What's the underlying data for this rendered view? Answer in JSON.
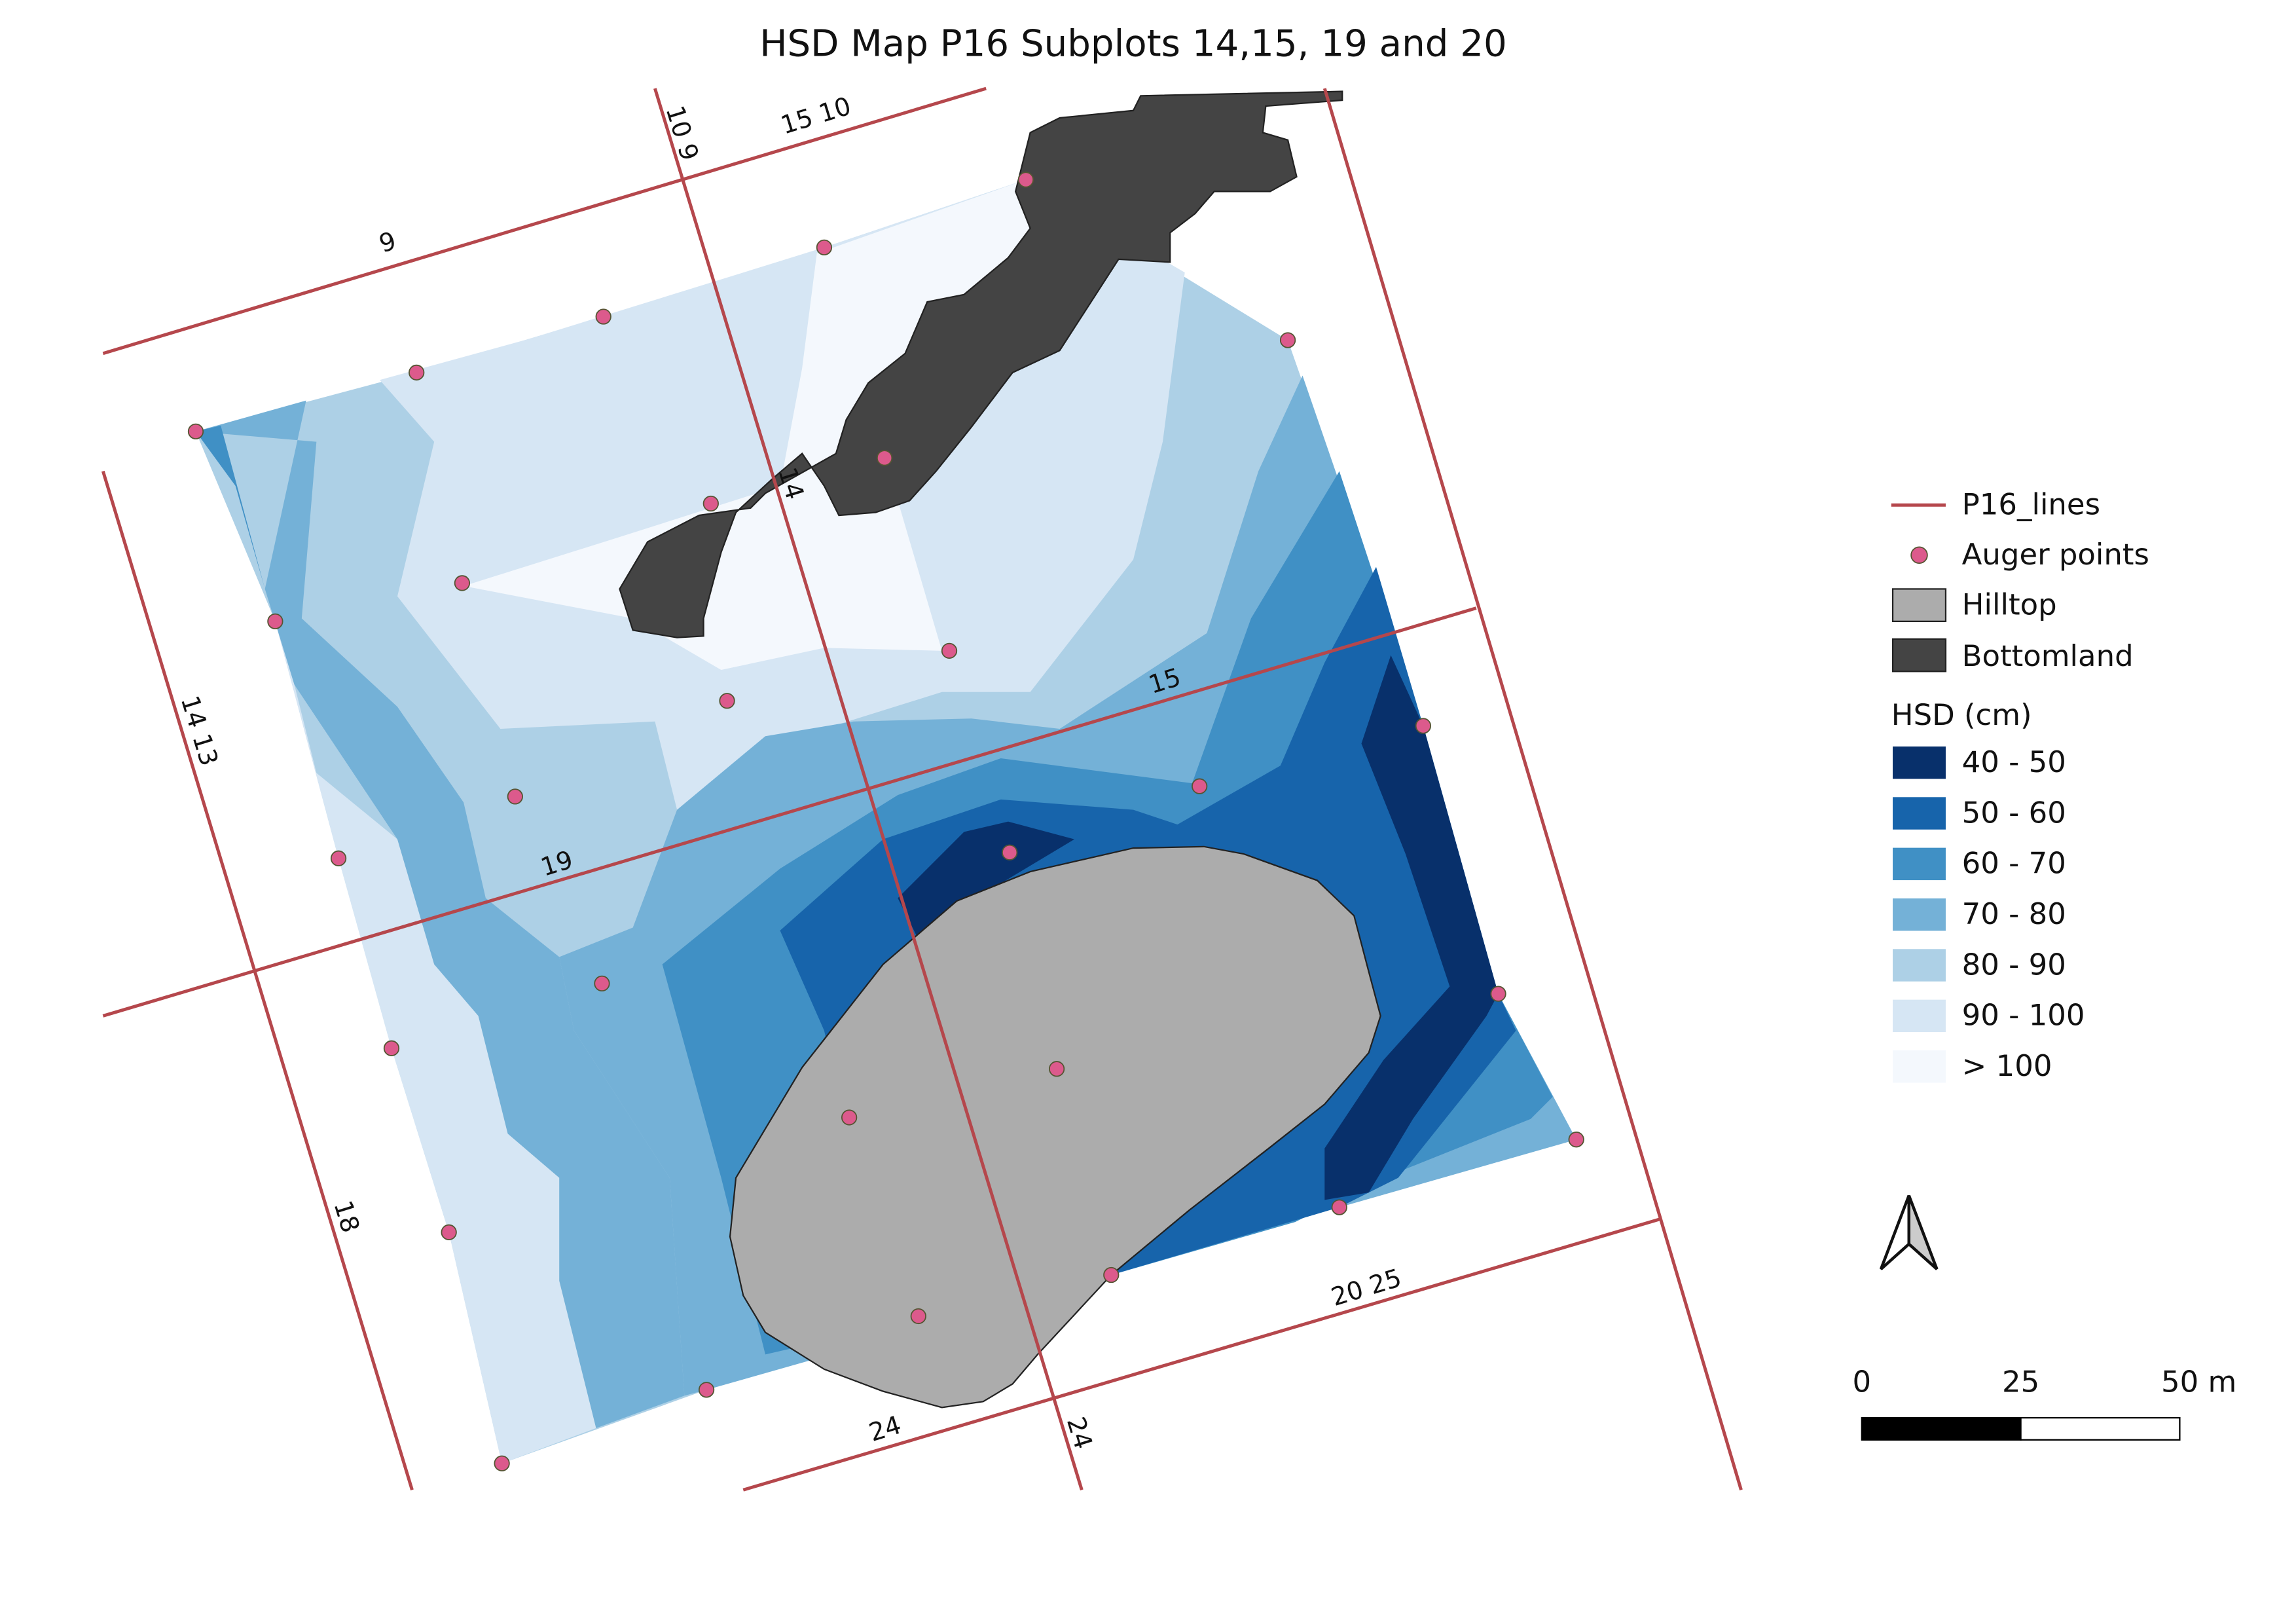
{
  "title": "HSD Map P16 Subplots 14,15, 19 and 20",
  "line_labels": [
    "9",
    "10 9",
    "15 10",
    "14",
    "15",
    "19",
    "14 13",
    "18",
    "20 25",
    "24",
    "24"
  ],
  "legend": {
    "lines": "P16_lines",
    "points": "Auger points",
    "hilltop": "Hilltop",
    "bottomland": "Bottomland",
    "hsd_title": "HSD (cm)",
    "hsd_classes": [
      {
        "label": "40 - 50",
        "color": "#08306b"
      },
      {
        "label": "50 - 60",
        "color": "#1764ab"
      },
      {
        "label": "60 - 70",
        "color": "#4090c5"
      },
      {
        "label": "70 - 80",
        "color": "#74b1d7"
      },
      {
        "label": "80 - 90",
        "color": "#add0e6"
      },
      {
        "label": "90 - 100",
        "color": "#d6e6f4"
      },
      {
        "label": "> 100",
        "color": "#f4f8fd"
      }
    ]
  },
  "scale_bar": {
    "labels": [
      "0",
      "25",
      "50 m"
    ]
  }
}
